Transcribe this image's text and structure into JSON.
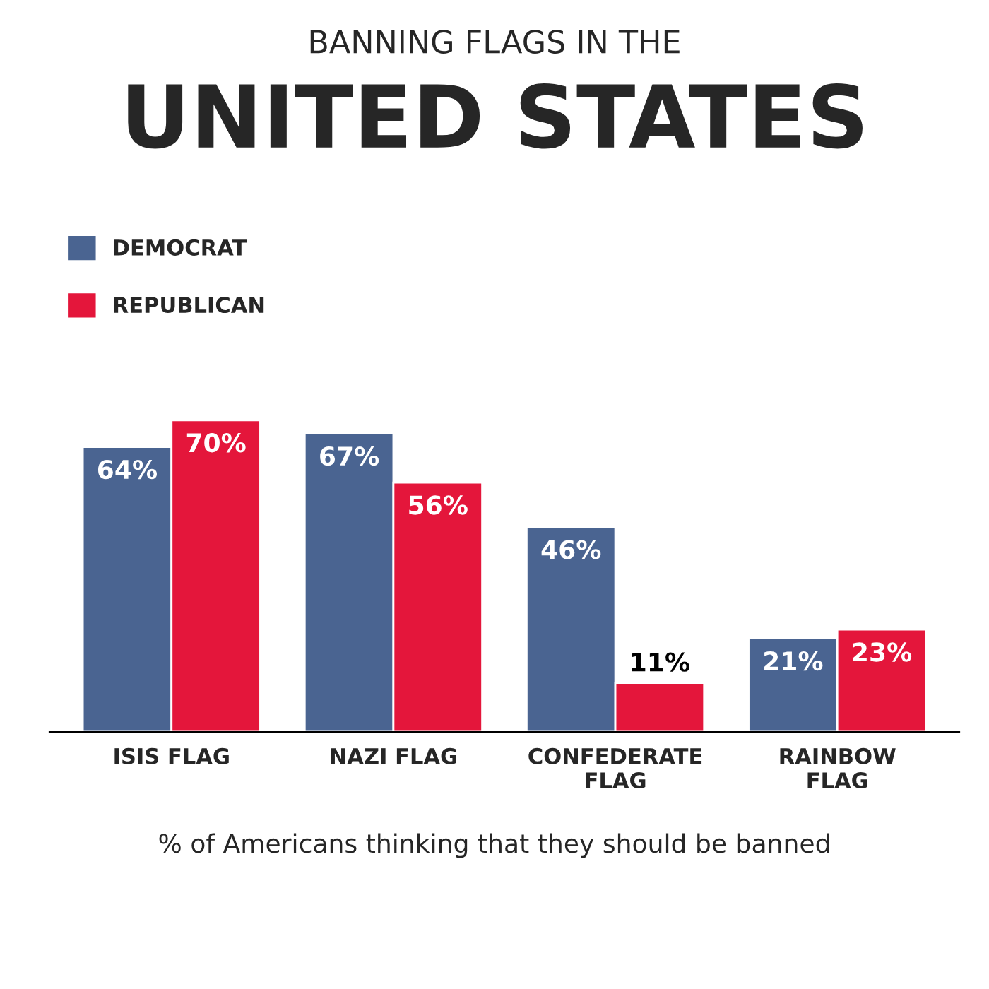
{
  "chart_data": {
    "type": "bar",
    "title": "UNITED STATES",
    "subtitle": "BANNING FLAGS IN THE",
    "categories": [
      "ISIS FLAG",
      "NAZI FLAG",
      "CONFEDERATE\nFLAG",
      "RAINBOW\nFLAG"
    ],
    "series": [
      {
        "name": "DEMOCRAT",
        "color": "#4a6491",
        "values": [
          64,
          67,
          46,
          21
        ],
        "value_labels": [
          "64%",
          "67%",
          "46%",
          "21%"
        ]
      },
      {
        "name": "REPUBLICAN",
        "color": "#e4163b",
        "values": [
          70,
          56,
          11,
          23
        ],
        "value_labels": [
          "70%",
          "56%",
          "11%",
          "23%"
        ]
      }
    ],
    "annotations": [
      "% of Americans thinking that they should be banned"
    ],
    "legend": "top left",
    "grid": false
  }
}
